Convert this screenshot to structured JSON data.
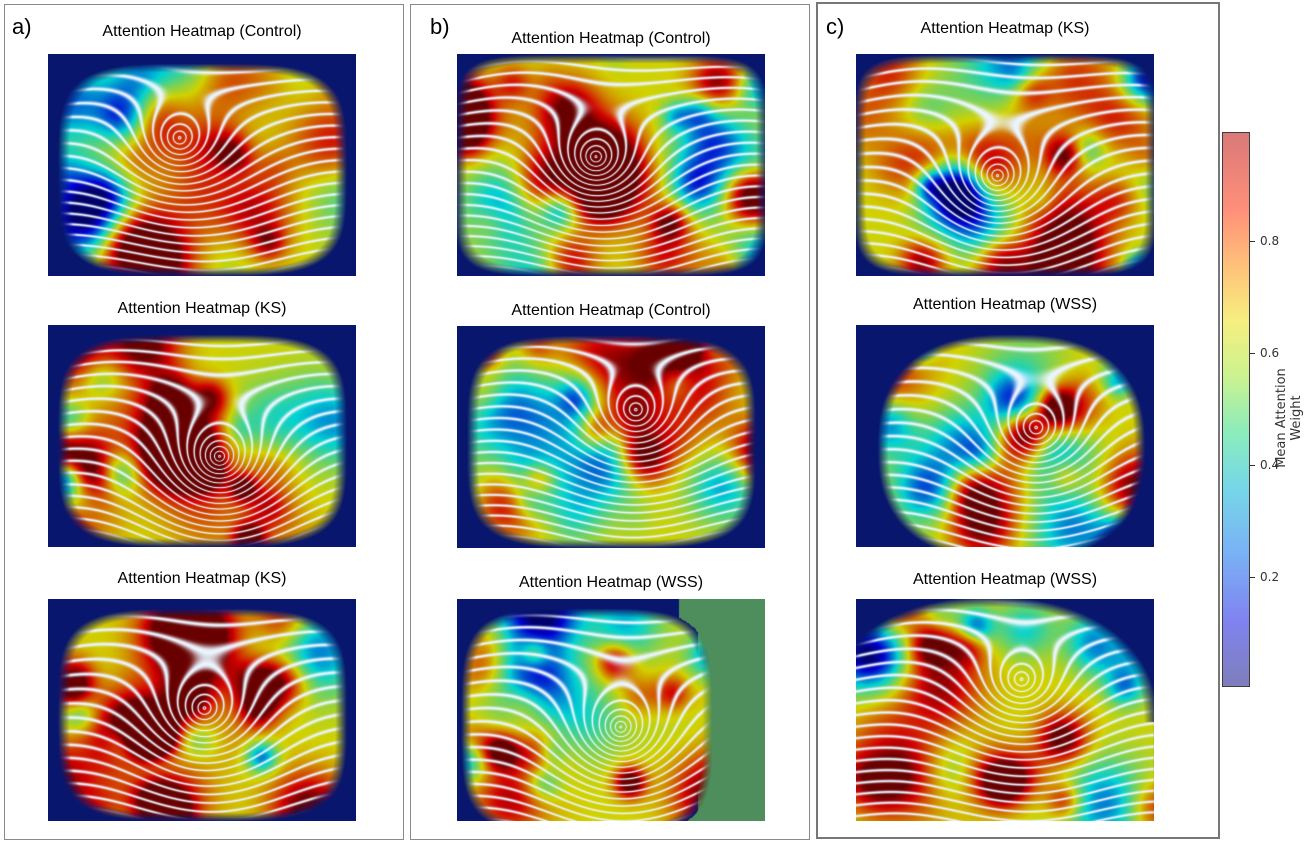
{
  "panels": [
    {
      "label": "a)",
      "cells": [
        {
          "title": "Attention Heatmap (Control)"
        },
        {
          "title": "Attention Heatmap (KS)"
        },
        {
          "title": "Attention Heatmap (KS)"
        }
      ]
    },
    {
      "label": "b)",
      "cells": [
        {
          "title": "Attention Heatmap (Control)"
        },
        {
          "title": "Attention Heatmap (Control)"
        },
        {
          "title": "Attention Heatmap (WSS)"
        }
      ]
    },
    {
      "label": "c)",
      "cells": [
        {
          "title": "Attention Heatmap (KS)"
        },
        {
          "title": "Attention Heatmap (WSS)"
        },
        {
          "title": "Attention Heatmap (WSS)"
        }
      ]
    }
  ],
  "colorbar": {
    "label": "Mean Attention Weight",
    "ticks": [
      "0.2",
      "0.4",
      "0.6",
      "0.8"
    ],
    "colormap": "jet",
    "colors": {
      "low": "#7878b8",
      "mid_low": "#72aef5",
      "mid": "#86ecb8",
      "mid_high": "#f7ee7a",
      "high": "#d87272"
    }
  }
}
